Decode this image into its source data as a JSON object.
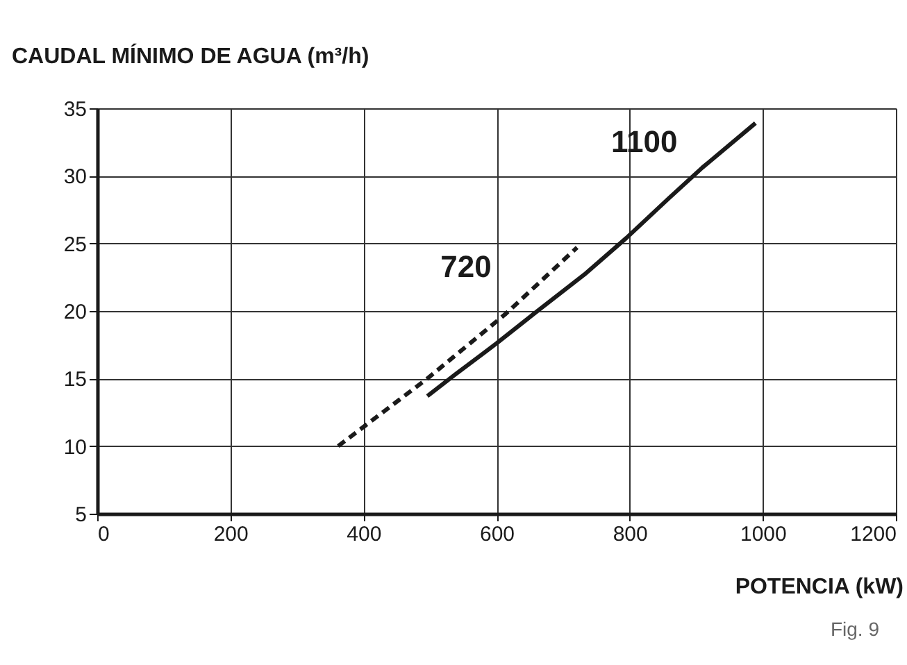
{
  "chart_data": {
    "type": "line",
    "ylabel": "CAUDAL MÍNIMO DE AGUA (m³/h)",
    "xlabel": "POTENCIA (kW)",
    "annotations": [
      "Fig. 9"
    ],
    "series": [
      {
        "name": "720",
        "color": "#1a1a1a",
        "line_style": "dashed",
        "x": [
          362,
          496,
          614,
          721
        ],
        "values": [
          10,
          15,
          19.8,
          24.7
        ]
      },
      {
        "name": "1100",
        "color": "#1a1a1a",
        "line_style": "solid",
        "x": [
          496,
          538,
          600,
          664,
          732,
          795,
          858,
          909,
          989
        ],
        "values": [
          13.7,
          15.3,
          17.6,
          20.1,
          22.7,
          25.4,
          28.3,
          30.6,
          33.9
        ]
      }
    ],
    "xlim": [
      0,
      1200
    ],
    "xticks": [
      0,
      200,
      400,
      600,
      800,
      1000,
      1200
    ],
    "ylim": [
      5,
      35
    ],
    "yticks": [
      5,
      10,
      15,
      20,
      25,
      30,
      35
    ],
    "grid": true,
    "marker": "none"
  }
}
